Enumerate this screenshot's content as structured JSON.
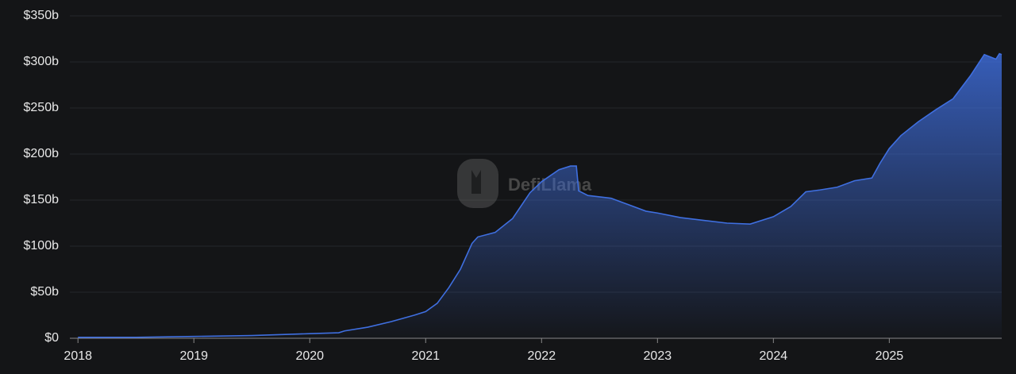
{
  "chart_data": {
    "type": "area",
    "watermark": "DefiLlama",
    "x": [
      2018.0,
      2018.5,
      2019.0,
      2019.5,
      2020.0,
      2020.25,
      2020.3,
      2020.5,
      2020.7,
      2020.9,
      2021.0,
      2021.1,
      2021.2,
      2021.3,
      2021.4,
      2021.45,
      2021.6,
      2021.75,
      2021.9,
      2022.0,
      2022.15,
      2022.25,
      2022.3,
      2022.32,
      2022.4,
      2022.6,
      2022.75,
      2022.9,
      2023.0,
      2023.2,
      2023.4,
      2023.6,
      2023.8,
      2024.0,
      2024.15,
      2024.28,
      2024.4,
      2024.55,
      2024.7,
      2024.85,
      2024.92,
      2025.0,
      2025.1,
      2025.25,
      2025.4,
      2025.55,
      2025.7,
      2025.82,
      2025.92,
      2025.95,
      2025.97
    ],
    "series": [
      {
        "color": "#3f6fe0",
        "values": [
          1,
          1,
          2,
          3,
          5,
          6,
          8,
          12,
          18,
          25,
          29,
          38,
          55,
          75,
          103,
          110,
          115,
          130,
          158,
          170,
          183,
          187,
          187,
          160,
          155,
          152,
          145,
          138,
          136,
          131,
          128,
          125,
          124,
          132,
          143,
          159,
          161,
          164,
          171,
          174,
          190,
          206,
          220,
          235,
          248,
          260,
          285,
          308,
          303,
          309,
          308
        ]
      }
    ],
    "xlim": [
      2017.93,
      2025.97
    ],
    "xticks": [
      2018,
      2019,
      2020,
      2021,
      2022,
      2023,
      2024,
      2025
    ],
    "ylim": [
      0,
      350
    ],
    "yticks": [
      {
        "value": 0,
        "label": "$0"
      },
      {
        "value": 50,
        "label": "$50b"
      },
      {
        "value": 100,
        "label": "$100b"
      },
      {
        "value": 150,
        "label": "$150b"
      },
      {
        "value": 200,
        "label": "$200b"
      },
      {
        "value": 250,
        "label": "$250b"
      },
      {
        "value": 300,
        "label": "$300b"
      },
      {
        "value": 350,
        "label": "$350b"
      }
    ],
    "grid": true
  }
}
